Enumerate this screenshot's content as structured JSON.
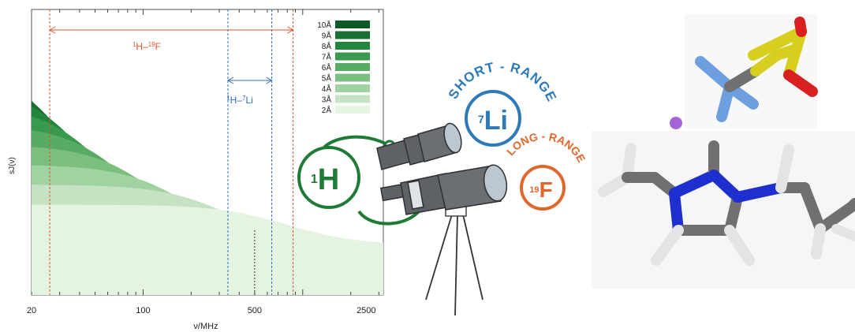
{
  "chart_data": {
    "type": "area",
    "x_scale": "log",
    "xlim": [
      20,
      3200
    ],
    "xlabel": "ν/MHz",
    "ylabel": "sJ(ν)",
    "x_ticks": [
      {
        "value": 20,
        "label": "20"
      },
      {
        "value": 100,
        "label": "100"
      },
      {
        "value": 500,
        "label": "500"
      },
      {
        "value": 2500,
        "label": "2500"
      }
    ],
    "legend_position": "top-right",
    "series": [
      {
        "name": "10Å",
        "value": 10,
        "color": "#0b5a27"
      },
      {
        "name": "9Å",
        "value": 9,
        "color": "#17702f"
      },
      {
        "name": "8Å",
        "value": 8,
        "color": "#25853c"
      },
      {
        "name": "7Å",
        "value": 7,
        "color": "#39994e"
      },
      {
        "name": "6Å",
        "value": 6,
        "color": "#57ab65"
      },
      {
        "name": "5Å",
        "value": 5,
        "color": "#7bbf7f"
      },
      {
        "name": "4Å",
        "value": 4,
        "color": "#a1d2a1"
      },
      {
        "name": "3Å",
        "value": 3,
        "color": "#c5e3c2"
      },
      {
        "name": "2Å",
        "value": 2,
        "color": "#e5f3e1"
      }
    ],
    "ranges": [
      {
        "label_main": "H–",
        "sup1": "1",
        "sup2": "19",
        "label_end": "F",
        "start": 26,
        "end": 870,
        "color": "#d9552e"
      },
      {
        "label_main": "H–",
        "sup1": "1",
        "sup2": "7",
        "label_end": "Li",
        "start": 340,
        "end": 640,
        "color": "#2f6fb5"
      }
    ],
    "marker_line": {
      "x": 500,
      "color": "#333333"
    }
  },
  "illustration": {
    "short_range_text": "SHORT - RANGE",
    "long_range_text": "LONG - RANGE",
    "li_badge": {
      "sup": "7",
      "main": "Li"
    },
    "f_badge": {
      "sup": "19",
      "main": "F"
    },
    "h_badge": {
      "sup": "1",
      "main": "H"
    },
    "colors": {
      "green": "#1f7a35",
      "blue": "#2e79b8",
      "orange": "#e0672b",
      "scope": "#5e6266",
      "scope_dark": "#3c4044",
      "lens": "#bcc7cf"
    }
  },
  "molecule": {
    "atom_colors": {
      "carbon": "#707070",
      "hydrogen": "#e4e4e4",
      "nitrogen": "#1d2fcf",
      "fluorine": "#6d9fe0",
      "sulfur": "#d6cf20",
      "oxygen": "#d92020",
      "lithium": "#a463d6"
    }
  }
}
